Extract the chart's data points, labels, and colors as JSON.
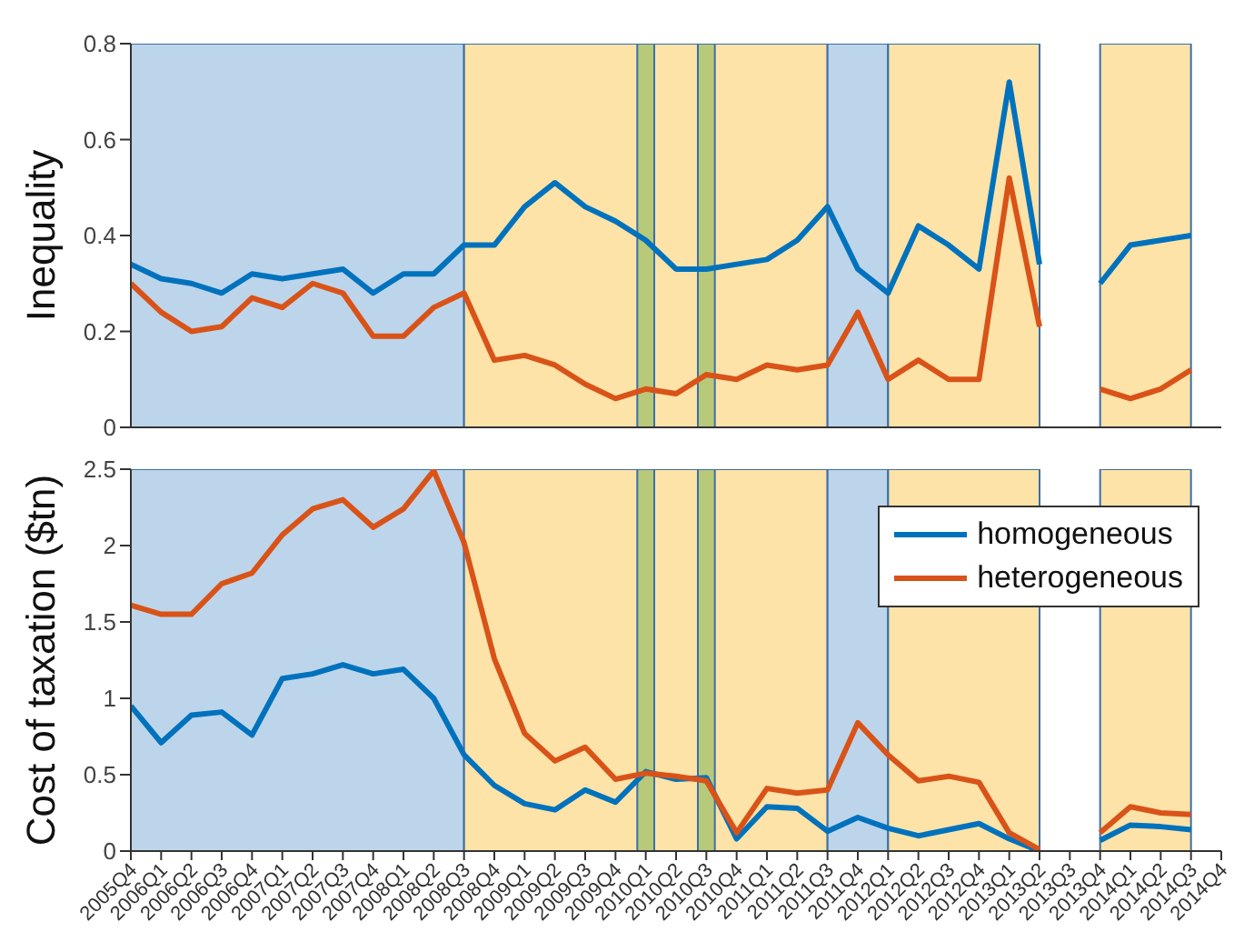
{
  "chart_data": [
    {
      "type": "line",
      "ylabel": "Inequality",
      "categories": [
        "2005Q4",
        "2006Q1",
        "2006Q2",
        "2006Q3",
        "2006Q4",
        "2007Q1",
        "2007Q2",
        "2007Q3",
        "2007Q4",
        "2008Q1",
        "2008Q2",
        "2008Q3",
        "2008Q4",
        "2009Q1",
        "2009Q2",
        "2009Q3",
        "2009Q4",
        "2010Q1",
        "2010Q2",
        "2010Q3",
        "2010Q4",
        "2011Q1",
        "2011Q2",
        "2011Q3",
        "2011Q4",
        "2012Q1",
        "2012Q2",
        "2012Q3",
        "2012Q4",
        "2013Q1",
        "2013Q2",
        "2013Q3",
        "2013Q4",
        "2014Q1",
        "2014Q2",
        "2014Q3",
        "2014Q4"
      ],
      "series": [
        {
          "color": "#0072bd",
          "values": [
            0.34,
            0.31,
            0.3,
            0.28,
            0.32,
            0.31,
            0.32,
            0.33,
            0.28,
            0.32,
            0.32,
            0.38,
            0.38,
            0.46,
            0.51,
            0.46,
            0.43,
            0.39,
            0.33,
            0.33,
            0.34,
            0.35,
            0.39,
            0.46,
            0.33,
            0.28,
            0.42,
            0.38,
            0.33,
            0.72,
            0.34,
            null,
            0.3,
            0.38,
            0.39,
            0.4,
            null
          ]
        },
        {
          "color": "#d95319",
          "values": [
            0.3,
            0.24,
            0.2,
            0.21,
            0.27,
            0.25,
            0.3,
            0.28,
            0.19,
            0.19,
            0.25,
            0.28,
            0.14,
            0.15,
            0.13,
            0.09,
            0.06,
            0.08,
            0.07,
            0.11,
            0.1,
            0.13,
            0.12,
            0.13,
            0.24,
            0.1,
            0.14,
            0.1,
            0.1,
            0.52,
            0.21,
            null,
            0.08,
            0.06,
            0.08,
            0.12,
            null
          ]
        }
      ],
      "ylim": [
        0,
        0.8
      ],
      "yticks": [
        0,
        0.2,
        0.4,
        0.6,
        0.8
      ],
      "grid": false,
      "legend": false,
      "tick_labels": "y",
      "bands": [
        {
          "axis": "x",
          "from": "2005Q4",
          "to": "2008Q3",
          "color": "#bdd5ea"
        },
        {
          "axis": "x",
          "from": "2008Q3",
          "to": "2011Q3",
          "color": "#fde3a7"
        },
        {
          "axis": "x",
          "from": "2010Q1",
          "to": "2010Q1",
          "color": "#b8c97a"
        },
        {
          "axis": "x",
          "from": "2010Q3",
          "to": "2010Q3",
          "color": "#b8c97a"
        },
        {
          "axis": "x",
          "from": "2011Q3",
          "to": "2012Q1",
          "color": "#bdd5ea"
        },
        {
          "axis": "x",
          "from": "2012Q1",
          "to": "2013Q2",
          "color": "#fde3a7"
        },
        {
          "axis": "x",
          "from": "2013Q4",
          "to": "2014Q3",
          "color": "#fde3a7"
        }
      ]
    },
    {
      "type": "line",
      "ylabel": "Cost of taxation ($tn)",
      "categories": [
        "2005Q4",
        "2006Q1",
        "2006Q2",
        "2006Q3",
        "2006Q4",
        "2007Q1",
        "2007Q2",
        "2007Q3",
        "2007Q4",
        "2008Q1",
        "2008Q2",
        "2008Q3",
        "2008Q4",
        "2009Q1",
        "2009Q2",
        "2009Q3",
        "2009Q4",
        "2010Q1",
        "2010Q2",
        "2010Q3",
        "2010Q4",
        "2011Q1",
        "2011Q2",
        "2011Q3",
        "2011Q4",
        "2012Q1",
        "2012Q2",
        "2012Q3",
        "2012Q4",
        "2013Q1",
        "2013Q2",
        "2013Q3",
        "2013Q4",
        "2014Q1",
        "2014Q2",
        "2014Q3",
        "2014Q4"
      ],
      "series": [
        {
          "name": "homogeneous",
          "color": "#0072bd",
          "values": [
            0.95,
            0.71,
            0.89,
            0.91,
            0.76,
            1.13,
            1.16,
            1.22,
            1.16,
            1.19,
            1.0,
            0.63,
            0.43,
            0.31,
            0.27,
            0.4,
            0.32,
            0.52,
            0.47,
            0.48,
            0.08,
            0.29,
            0.28,
            0.13,
            0.22,
            0.15,
            0.1,
            0.14,
            0.18,
            0.08,
            0.0,
            null,
            0.07,
            0.17,
            0.16,
            0.14,
            null
          ]
        },
        {
          "name": "heterogeneous",
          "color": "#d95319",
          "values": [
            1.61,
            1.55,
            1.55,
            1.75,
            1.82,
            2.07,
            2.24,
            2.3,
            2.12,
            2.24,
            2.49,
            2.02,
            1.26,
            0.77,
            0.59,
            0.68,
            0.47,
            0.51,
            0.49,
            0.46,
            0.12,
            0.41,
            0.38,
            0.4,
            0.84,
            0.63,
            0.46,
            0.49,
            0.45,
            0.12,
            0.01,
            null,
            0.12,
            0.29,
            0.25,
            0.24,
            null
          ]
        }
      ],
      "ylim": [
        0,
        2.5
      ],
      "yticks": [
        0,
        0.5,
        1,
        1.5,
        2,
        2.5
      ],
      "grid": false,
      "legend": "top right",
      "bands": [
        {
          "axis": "x",
          "from": "2005Q4",
          "to": "2008Q3",
          "color": "#bdd5ea"
        },
        {
          "axis": "x",
          "from": "2008Q3",
          "to": "2011Q3",
          "color": "#fde3a7"
        },
        {
          "axis": "x",
          "from": "2010Q1",
          "to": "2010Q1",
          "color": "#b8c97a"
        },
        {
          "axis": "x",
          "from": "2010Q3",
          "to": "2010Q3",
          "color": "#b8c97a"
        },
        {
          "axis": "x",
          "from": "2011Q3",
          "to": "2012Q1",
          "color": "#bdd5ea"
        },
        {
          "axis": "x",
          "from": "2012Q1",
          "to": "2013Q2",
          "color": "#fde3a7"
        },
        {
          "axis": "x",
          "from": "2013Q4",
          "to": "2014Q3",
          "color": "#fde3a7"
        }
      ]
    }
  ]
}
